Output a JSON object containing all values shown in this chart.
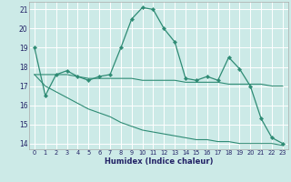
{
  "xlabel": "Humidex (Indice chaleur)",
  "bg_color": "#cceae7",
  "grid_color": "#ffffff",
  "line_color": "#2e8b74",
  "xlim": [
    -0.5,
    23.5
  ],
  "ylim": [
    13.7,
    21.4
  ],
  "yticks": [
    14,
    15,
    16,
    17,
    18,
    19,
    20,
    21
  ],
  "xticks": [
    0,
    1,
    2,
    3,
    4,
    5,
    6,
    7,
    8,
    9,
    10,
    11,
    12,
    13,
    14,
    15,
    16,
    17,
    18,
    19,
    20,
    21,
    22,
    23
  ],
  "series1_x": [
    0,
    1,
    2,
    3,
    4,
    5,
    6,
    7,
    8,
    9,
    10,
    11,
    12,
    13,
    14,
    15,
    16,
    17,
    18,
    19,
    20,
    21,
    22,
    23
  ],
  "series1_y": [
    19.0,
    16.5,
    17.6,
    17.8,
    17.5,
    17.3,
    17.5,
    17.6,
    19.0,
    20.5,
    21.1,
    21.0,
    20.0,
    19.3,
    17.4,
    17.3,
    17.5,
    17.3,
    18.5,
    17.9,
    17.0,
    15.3,
    14.3,
    14.0
  ],
  "series2_x": [
    0,
    1,
    2,
    3,
    4,
    5,
    6,
    7,
    8,
    9,
    10,
    11,
    12,
    13,
    14,
    15,
    16,
    17,
    18,
    19,
    20,
    21,
    22,
    23
  ],
  "series2_y": [
    17.6,
    17.6,
    17.6,
    17.6,
    17.5,
    17.4,
    17.4,
    17.4,
    17.4,
    17.4,
    17.3,
    17.3,
    17.3,
    17.3,
    17.2,
    17.2,
    17.2,
    17.2,
    17.1,
    17.1,
    17.1,
    17.1,
    17.0,
    17.0
  ],
  "series3_x": [
    0,
    1,
    2,
    3,
    4,
    5,
    6,
    7,
    8,
    9,
    10,
    11,
    12,
    13,
    14,
    15,
    16,
    17,
    18,
    19,
    20,
    21,
    22,
    23
  ],
  "series3_y": [
    17.6,
    17.0,
    16.7,
    16.4,
    16.1,
    15.8,
    15.6,
    15.4,
    15.1,
    14.9,
    14.7,
    14.6,
    14.5,
    14.4,
    14.3,
    14.2,
    14.2,
    14.1,
    14.1,
    14.0,
    14.0,
    14.0,
    14.0,
    13.9
  ]
}
